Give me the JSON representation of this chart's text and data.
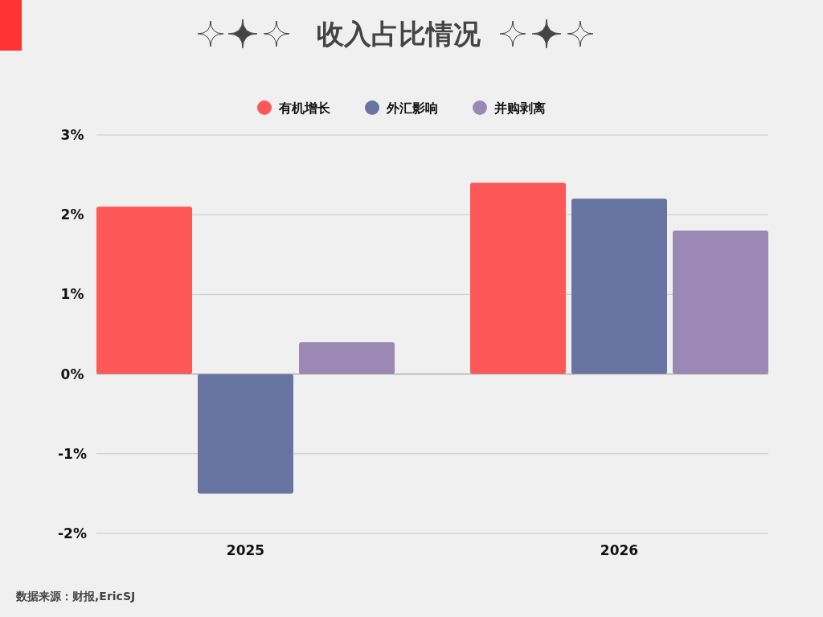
{
  "chart_data": {
    "type": "bar",
    "title": "收入占比情况",
    "categories": [
      "2025",
      "2026"
    ],
    "series": [
      {
        "name": "有机增长",
        "color": "#fe5757",
        "values": [
          2.1,
          2.4
        ]
      },
      {
        "name": "外汇影响",
        "color": "#6874a1",
        "values": [
          -1.5,
          2.2
        ]
      },
      {
        "name": "并购剥离",
        "color": "#9b88b4",
        "values": [
          0.4,
          1.8
        ]
      }
    ],
    "ylim": [
      -2,
      3
    ],
    "yticks": [
      {
        "value": -2,
        "label": "-2%"
      },
      {
        "value": -1,
        "label": "-1%"
      },
      {
        "value": 0,
        "label": "0%"
      },
      {
        "value": 1,
        "label": "1%"
      },
      {
        "value": 2,
        "label": "2%"
      },
      {
        "value": 3,
        "label": "3%"
      }
    ],
    "grid": "y",
    "legend": "top",
    "annotations": [
      "数据来源：财报,EricSJ"
    ]
  }
}
